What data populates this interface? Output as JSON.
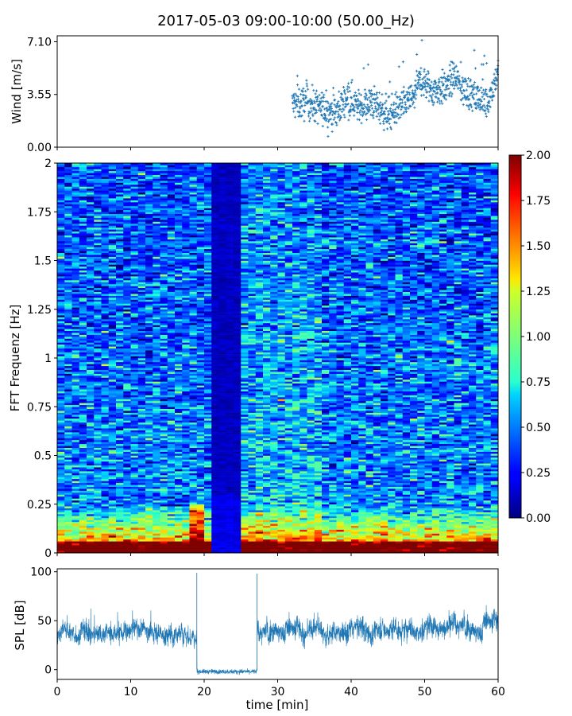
{
  "chart_data": [
    {
      "type": "scatter",
      "title": "2017-05-03 09:00-10:00 (50.00_Hz)",
      "ylabel": "Wind [m/s]",
      "xlim": [
        0,
        60
      ],
      "ylim": [
        0,
        7.5
      ],
      "yticks": [
        0.0,
        3.55,
        7.1
      ],
      "ytick_labels": [
        "0.00",
        "3.55",
        "7.10"
      ],
      "xticks": [
        0,
        10,
        20,
        30,
        40,
        50,
        60
      ],
      "color": "#1f77b4",
      "series": [
        {
          "name": "wind",
          "x_range": [
            32,
            60
          ],
          "trend": [
            {
              "x": 32,
              "y": 2.9
            },
            {
              "x": 34,
              "y": 3.0
            },
            {
              "x": 36,
              "y": 2.6
            },
            {
              "x": 38,
              "y": 2.3
            },
            {
              "x": 39.5,
              "y": 3.5
            },
            {
              "x": 41,
              "y": 2.7
            },
            {
              "x": 43,
              "y": 3.0
            },
            {
              "x": 45,
              "y": 2.2
            },
            {
              "x": 47,
              "y": 2.8
            },
            {
              "x": 48.5,
              "y": 3.4
            },
            {
              "x": 49.5,
              "y": 4.6
            },
            {
              "x": 51,
              "y": 3.8
            },
            {
              "x": 53,
              "y": 4.0
            },
            {
              "x": 54,
              "y": 4.8
            },
            {
              "x": 55,
              "y": 4.0
            },
            {
              "x": 57,
              "y": 3.3
            },
            {
              "x": 58.5,
              "y": 3.0
            },
            {
              "x": 60,
              "y": 5.0
            }
          ]
        }
      ]
    },
    {
      "type": "heatmap",
      "ylabel": "FFT Frequenz [Hz]",
      "xlim": [
        0,
        60
      ],
      "ylim": [
        0,
        2
      ],
      "yticks": [
        0,
        0.25,
        0.5,
        0.75,
        1,
        1.25,
        1.5,
        1.75,
        2
      ],
      "ytick_labels": [
        "0",
        "0.25",
        "0.5",
        "0.75",
        "1",
        "1.25",
        "1.5",
        "1.75",
        "2"
      ],
      "xticks": [
        0,
        10,
        20,
        30,
        40,
        50,
        60
      ],
      "colormap": "jet",
      "colorbar": {
        "range": [
          0.0,
          2.0
        ],
        "ticks": [
          0.0,
          0.25,
          0.5,
          0.75,
          1.0,
          1.25,
          1.5,
          1.75,
          2.0
        ],
        "tick_labels": [
          "0.00",
          "0.25",
          "0.50",
          "0.75",
          "1.00",
          "1.25",
          "1.50",
          "1.75",
          "2.00"
        ]
      },
      "n_time_bins": 60,
      "n_freq_bins": 200,
      "quiet_period_min": [
        20.5,
        25
      ],
      "high_energy_freq_below_hz": 0.25
    },
    {
      "type": "line",
      "ylabel": "SPL [dB]",
      "xlabel": "time [min]",
      "xlim": [
        0,
        60
      ],
      "ylim": [
        -10,
        103
      ],
      "yticks": [
        0,
        50,
        100
      ],
      "ytick_labels": [
        "0",
        "50",
        "100"
      ],
      "xticks": [
        0,
        10,
        20,
        30,
        40,
        50,
        60
      ],
      "xtick_labels": [
        "0",
        "10",
        "20",
        "30",
        "40",
        "50",
        "60"
      ],
      "color": "#1f77b4",
      "series": [
        {
          "name": "SPL",
          "segments": [
            {
              "x_range": [
                0,
                19
              ],
              "mean_db": 38
            },
            {
              "x_range": [
                19,
                27.2
              ],
              "mean_db": -2
            },
            {
              "x_range": [
                27.2,
                60
              ],
              "mean_db": 42
            }
          ],
          "spikes": [
            {
              "x": 19.0,
              "y": 99
            },
            {
              "x": 27.2,
              "y": 98
            }
          ]
        }
      ]
    }
  ]
}
